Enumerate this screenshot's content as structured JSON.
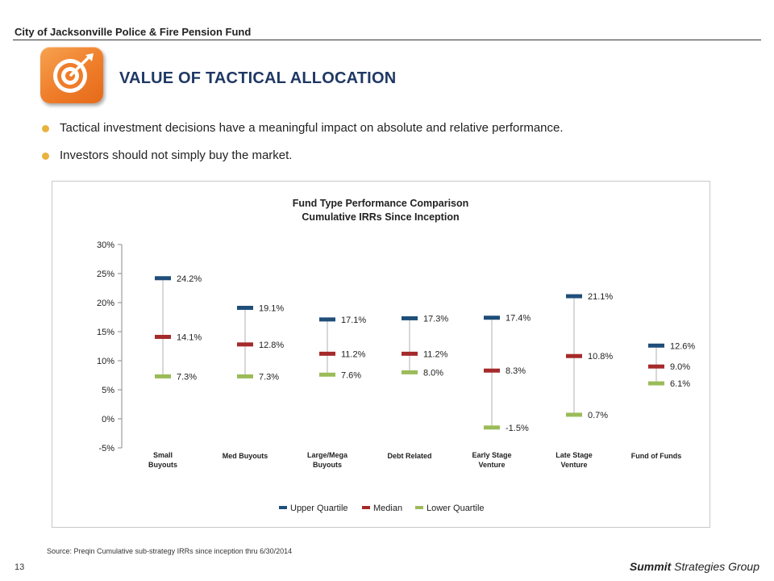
{
  "header": {
    "title": "City of Jacksonville Police & Fire Pension Fund"
  },
  "logo": {
    "icon": "target-icon",
    "color": "#ef7d2a"
  },
  "section": {
    "title": "VALUE OF TACTICAL ALLOCATION"
  },
  "bullets": [
    "Tactical investment decisions have a meaningful impact on absolute and relative performance.",
    "Investors should not simply buy the market."
  ],
  "chart_data": {
    "type": "scatter",
    "title": "Fund Type Performance Comparison",
    "subtitle": "Cumulative IRRs Since Inception",
    "categories": [
      [
        "Small",
        "Buyouts"
      ],
      [
        "Med Buyouts"
      ],
      [
        "Large/Mega",
        "Buyouts"
      ],
      [
        "Debt Related"
      ],
      [
        "Early Stage",
        "Venture"
      ],
      [
        "Late Stage",
        "Venture"
      ],
      [
        "Fund of Funds"
      ]
    ],
    "series": [
      {
        "name": "Upper Quartile",
        "color": "#1f4e79",
        "values": [
          24.2,
          19.1,
          17.1,
          17.3,
          17.4,
          21.1,
          12.6
        ],
        "labels": [
          "24.2%",
          "19.1%",
          "17.1%",
          "17.3%",
          "17.4%",
          "21.1%",
          "12.6%"
        ]
      },
      {
        "name": "Median",
        "color": "#a52a2a",
        "values": [
          14.1,
          12.8,
          11.2,
          11.2,
          8.3,
          10.8,
          9.0
        ],
        "labels": [
          "14.1%",
          "12.8%",
          "11.2%",
          "11.2%",
          "8.3%",
          "10.8%",
          "9.0%"
        ]
      },
      {
        "name": "Lower Quartile",
        "color": "#9bbb59",
        "values": [
          7.3,
          7.3,
          7.6,
          8.0,
          -1.5,
          0.7,
          6.1
        ],
        "labels": [
          "7.3%",
          "7.3%",
          "7.6%",
          "8.0%",
          "-1.5%",
          "0.7%",
          "6.1%"
        ]
      }
    ],
    "ylim": [
      -5,
      30
    ],
    "yticks": [
      30,
      25,
      20,
      15,
      10,
      5,
      0,
      -5
    ],
    "ytick_labels": [
      "30%",
      "25%",
      "20%",
      "15%",
      "10%",
      "5%",
      "0%",
      "-5%"
    ],
    "grid": false,
    "legend": "bottom"
  },
  "footer": {
    "source": "Source: Preqin Cumulative sub-strategy IRRs since inception thru 6/30/2014",
    "page": "13",
    "brand_bold": "Summit",
    "brand_rest": " Strategies Group"
  }
}
